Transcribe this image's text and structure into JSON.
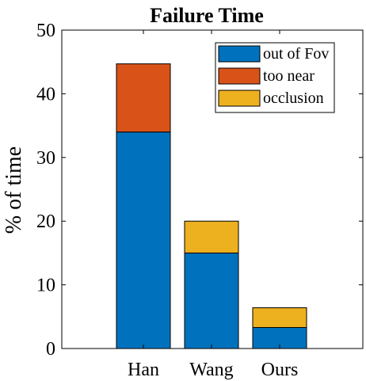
{
  "chart_data": {
    "type": "bar",
    "stacked": true,
    "title": "Failure Time",
    "xlabel": "",
    "ylabel": "% of time",
    "categories": [
      "Han",
      "Wang",
      "Ours"
    ],
    "ylim": [
      0,
      50
    ],
    "yticks": [
      0,
      10,
      20,
      30,
      40,
      50
    ],
    "series": [
      {
        "name": "out of Fov",
        "values": [
          34,
          15,
          3.3
        ],
        "color": "#0072BD"
      },
      {
        "name": "too near",
        "values": [
          10.7,
          0,
          0
        ],
        "color": "#D95319"
      },
      {
        "name": "occlusion",
        "values": [
          0,
          5,
          3.1
        ],
        "color": "#EDB120"
      }
    ],
    "legend_position": "top-right",
    "grid": false
  }
}
